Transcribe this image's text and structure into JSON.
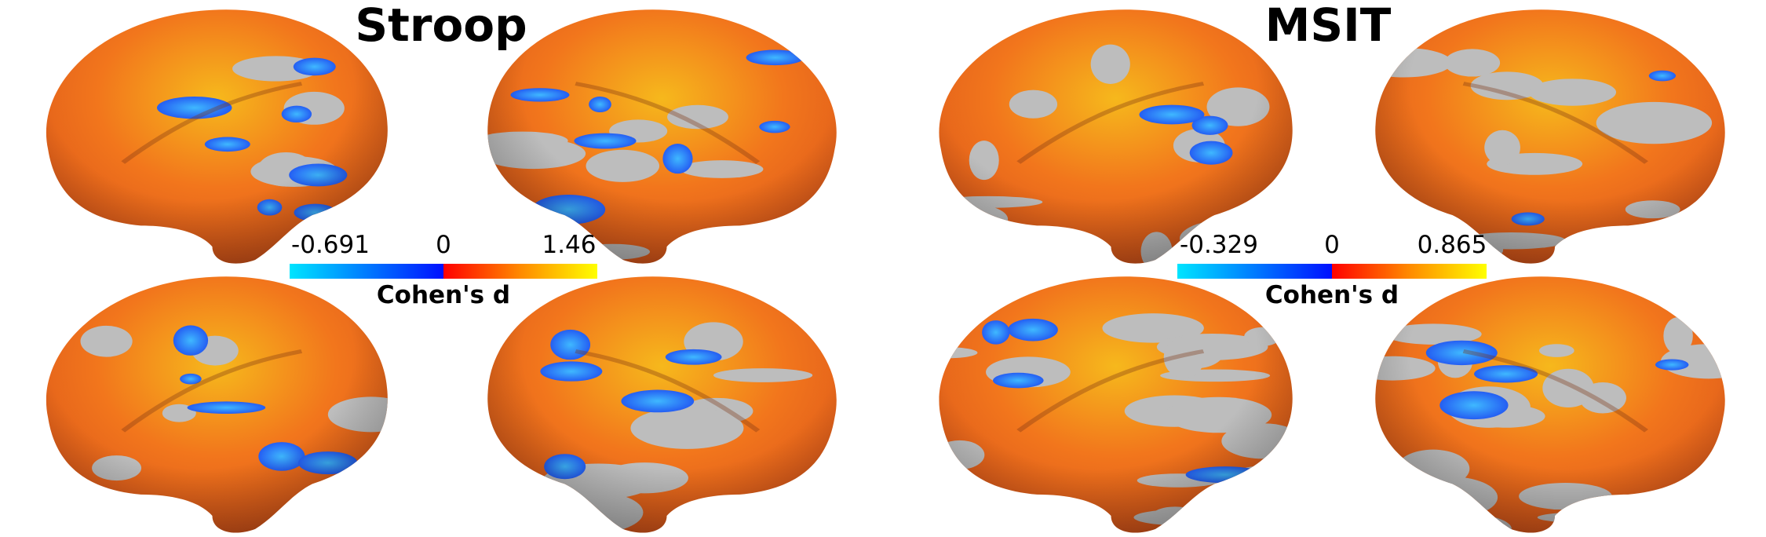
{
  "panels": [
    {
      "title": "Stroop",
      "colorbar": {
        "min": "-0.691",
        "zero": "0",
        "max": "1.46",
        "label": "Cohen's d"
      }
    },
    {
      "title": "MSIT",
      "colorbar": {
        "min": "-0.329",
        "zero": "0",
        "max": "0.865",
        "label": "Cohen's d"
      }
    }
  ]
}
